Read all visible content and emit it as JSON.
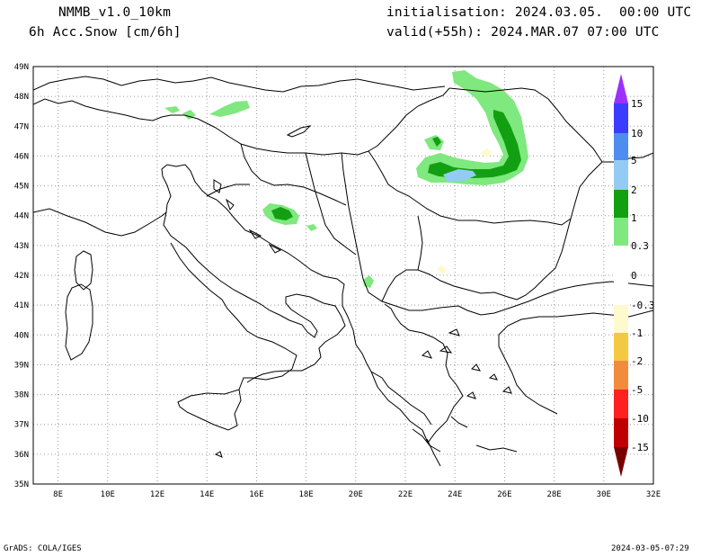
{
  "header": {
    "model": "NMMB_v1.0_10km",
    "field": "6h Acc.Snow [cm/6h]",
    "init": "initialisation: 2024.03.05.  00:00 UTC",
    "valid": "valid(+55h): 2024.MAR.07 07:00 UTC"
  },
  "map": {
    "lon_ticks": [
      "8E",
      "10E",
      "12E",
      "14E",
      "16E",
      "18E",
      "20E",
      "22E",
      "24E",
      "26E",
      "28E",
      "30E",
      "32E"
    ],
    "lat_ticks": [
      "49N",
      "48N",
      "47N",
      "46N",
      "45N",
      "44N",
      "43N",
      "42N",
      "41N",
      "40N",
      "39N",
      "38N",
      "37N",
      "36N",
      "35N"
    ],
    "lon_range": [
      7,
      32
    ],
    "lat_range": [
      35,
      49
    ],
    "grid": "dotted",
    "projection": "lat-lon"
  },
  "colorbar": {
    "labels": [
      "15",
      "10",
      "5",
      "2",
      "1",
      "0.3",
      "0",
      "-0.3",
      "-1",
      "-2",
      "-5",
      "-10",
      "-15"
    ],
    "colors": {
      "over": "#9b30ff",
      "c10_15": "#3c3cff",
      "c5_10": "#4f8cef",
      "c2_5": "#93cbf5",
      "c1_2": "#12a012",
      "c03_1": "#7fe87f",
      "c0": "#ffffff",
      "cm03": "#fffacd",
      "cm1": "#f5c842",
      "cm2": "#f08c3c",
      "cm5": "#ff2020",
      "cm10": "#c00000",
      "under": "#7a0000"
    }
  },
  "footer": {
    "left": "GrADS: COLA/IGES",
    "right": "2024-03-05-07:29"
  }
}
